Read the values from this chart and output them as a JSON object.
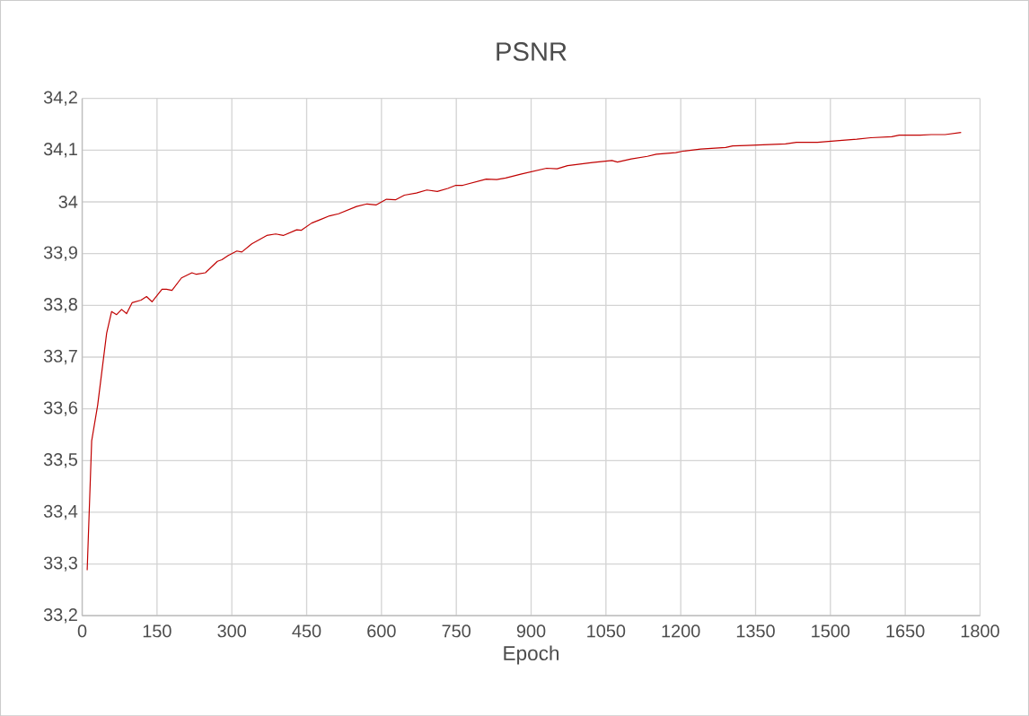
{
  "chart_data": {
    "type": "line",
    "title": "PSNR",
    "xlabel": "Epoch",
    "x": [
      10,
      19,
      31,
      49,
      59,
      69,
      79,
      89,
      100,
      118,
      129,
      140,
      160,
      169,
      180,
      199,
      220,
      229,
      247,
      271,
      280,
      292,
      310,
      320,
      340,
      370,
      388,
      403,
      430,
      439,
      460,
      478,
      496,
      514,
      550,
      571,
      589,
      610,
      628,
      646,
      670,
      691,
      712,
      733,
      749,
      763,
      810,
      831,
      849,
      881,
      931,
      952,
      973,
      1023,
      1062,
      1073,
      1101,
      1133,
      1151,
      1190,
      1204,
      1240,
      1290,
      1304,
      1332,
      1354,
      1410,
      1432,
      1474,
      1524,
      1553,
      1581,
      1623,
      1638,
      1680,
      1702,
      1730,
      1762
    ],
    "series": [
      {
        "color": "#c00000",
        "values": [
          33.288,
          33.538,
          33.607,
          33.746,
          33.788,
          33.782,
          33.792,
          33.784,
          33.805,
          33.81,
          33.817,
          33.807,
          33.831,
          33.831,
          33.829,
          33.853,
          33.863,
          33.86,
          33.863,
          33.885,
          33.888,
          33.896,
          33.905,
          33.903,
          33.919,
          33.935,
          33.938,
          33.935,
          33.946,
          33.945,
          33.959,
          33.966,
          33.973,
          33.977,
          33.991,
          33.996,
          33.994,
          34.005,
          34.004,
          34.013,
          34.017,
          34.023,
          34.02,
          34.026,
          34.032,
          34.032,
          34.044,
          34.043,
          34.046,
          34.054,
          34.065,
          34.064,
          34.07,
          34.076,
          34.08,
          34.077,
          34.083,
          34.088,
          34.092,
          34.095,
          34.098,
          34.102,
          34.105,
          34.108,
          34.109,
          34.11,
          34.112,
          34.115,
          34.115,
          34.119,
          34.121,
          34.124,
          34.126,
          34.129,
          34.129,
          34.13,
          34.13,
          34.134
        ]
      }
    ],
    "xlim": [
      0,
      1800
    ],
    "ylim": [
      33.2,
      34.2
    ],
    "xticks": [
      0,
      150,
      300,
      450,
      600,
      750,
      900,
      1050,
      1200,
      1350,
      1500,
      1650,
      1800
    ],
    "yticks": [
      {
        "value": 33.2,
        "label": "33,2"
      },
      {
        "value": 33.3,
        "label": "33,3"
      },
      {
        "value": 33.4,
        "label": "33,4"
      },
      {
        "value": 33.5,
        "label": "33,5"
      },
      {
        "value": 33.6,
        "label": "33,6"
      },
      {
        "value": 33.7,
        "label": "33,7"
      },
      {
        "value": 33.8,
        "label": "33,8"
      },
      {
        "value": 33.9,
        "label": "33,9"
      },
      {
        "value": 34,
        "label": "34"
      },
      {
        "value": 34.1,
        "label": "34,1"
      },
      {
        "value": 34.2,
        "label": "34,2"
      }
    ],
    "grid": true,
    "marker": "none",
    "line_style": "solid"
  }
}
